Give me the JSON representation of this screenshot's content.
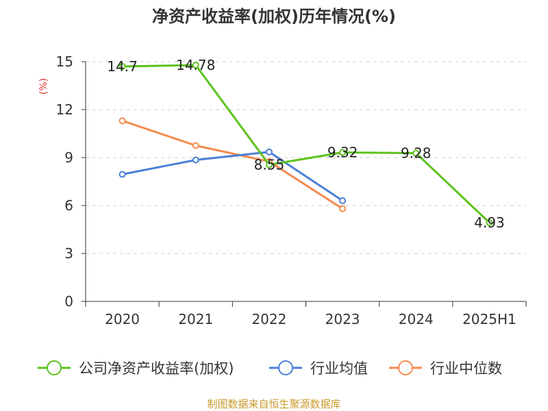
{
  "chart_data": {
    "type": "line",
    "title": "净资产收益率(加权)历年情况(%)",
    "ylabel": "(%)",
    "categories": [
      "2020",
      "2021",
      "2022",
      "2023",
      "2024",
      "2025H1"
    ],
    "ylim": [
      0,
      15
    ],
    "yticks": [
      0,
      3,
      6,
      9,
      12,
      15
    ],
    "grid": true,
    "legend_position": "bottom",
    "series": [
      {
        "name": "公司净资产收益率(加权)",
        "color": "#5cc21c",
        "values": [
          14.7,
          14.78,
          8.55,
          9.32,
          9.28,
          4.93
        ],
        "labels": [
          "14.7",
          "14.78",
          "8.55",
          "9.32",
          "9.28",
          "4.93"
        ]
      },
      {
        "name": "行业均值",
        "color": "#4a7fd8",
        "values": [
          7.95,
          8.85,
          9.35,
          6.3,
          null,
          null
        ]
      },
      {
        "name": "行业中位数",
        "color": "#f58a4f",
        "values": [
          11.3,
          9.75,
          8.75,
          5.8,
          null,
          null
        ]
      }
    ]
  },
  "source": "制图数据来自恒生聚源数据库"
}
